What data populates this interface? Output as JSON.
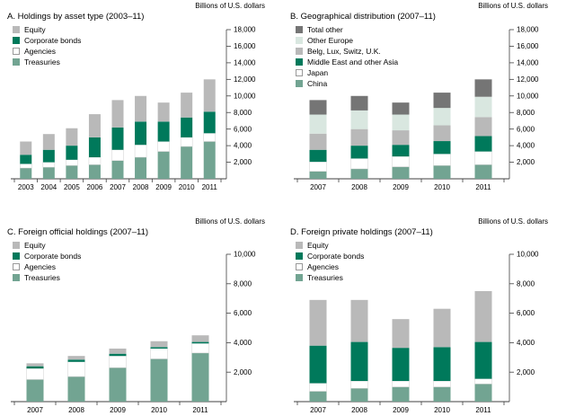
{
  "units_label": "Billions of U.S. dollars",
  "colors": {
    "equity": "#b9b9b9",
    "corporate_bonds": "#00795b",
    "agencies": "#ffffff",
    "treasuries": "#72a492",
    "total_other": "#757575",
    "other_europe": "#d9e7e0",
    "belg_lux_switz_uk": "#b9b9b9",
    "middle_east_other_asia": "#00795b",
    "japan": "#ffffff",
    "china": "#72a492",
    "axis_line": "#404040",
    "text": "#000000"
  },
  "chart_data": [
    {
      "id": "panel-a",
      "type": "bar",
      "stacked": true,
      "title": "A. Holdings by asset type (2003–11)",
      "units": "Billions of U.S. dollars",
      "categories": [
        "2003",
        "2004",
        "2005",
        "2006",
        "2007",
        "2008",
        "2009",
        "2010",
        "2011"
      ],
      "series": [
        {
          "name": "Treasuries",
          "color_key": "treasuries",
          "values": [
            1300,
            1400,
            1600,
            1700,
            2200,
            2600,
            3300,
            3900,
            4500
          ]
        },
        {
          "name": "Agencies",
          "color_key": "agencies",
          "values": [
            500,
            600,
            700,
            900,
            1300,
            1500,
            1200,
            1100,
            1000
          ]
        },
        {
          "name": "Corporate bonds",
          "color_key": "corporate_bonds",
          "values": [
            1100,
            1500,
            1700,
            2400,
            2700,
            2800,
            2400,
            2400,
            2600
          ]
        },
        {
          "name": "Equity",
          "color_key": "equity",
          "values": [
            1600,
            1900,
            2100,
            2800,
            3300,
            3100,
            2300,
            3000,
            3900
          ]
        }
      ],
      "ylim": [
        0,
        18000
      ],
      "ytick_step": 2000,
      "grid": false,
      "legend_position": "top-left",
      "axis_side": "right"
    },
    {
      "id": "panel-b",
      "type": "bar",
      "stacked": true,
      "title": "B. Geographical distribution (2007–11)",
      "units": "Billions of U.S. dollars",
      "categories": [
        "2007",
        "2008",
        "2009",
        "2010",
        "2011"
      ],
      "series": [
        {
          "name": "China",
          "color_key": "china",
          "values": [
            900,
            1200,
            1450,
            1600,
            1700
          ]
        },
        {
          "name": "Japan",
          "color_key": "japan",
          "values": [
            1150,
            1250,
            1250,
            1400,
            1600
          ]
        },
        {
          "name": "Middle East and other Asia",
          "color_key": "middle_east_other_asia",
          "values": [
            1450,
            1550,
            1400,
            1550,
            1850
          ]
        },
        {
          "name": "Belg, Lux, Switz, U.K.",
          "color_key": "belg_lux_switz_uk",
          "values": [
            1950,
            2000,
            1750,
            1900,
            2300
          ]
        },
        {
          "name": "Other Europe",
          "color_key": "other_europe",
          "values": [
            2300,
            2250,
            1900,
            2100,
            2450
          ]
        },
        {
          "name": "Total other",
          "color_key": "total_other",
          "values": [
            1750,
            1750,
            1450,
            1850,
            2100
          ]
        }
      ],
      "ylim": [
        0,
        18000
      ],
      "ytick_step": 2000,
      "grid": false,
      "legend_position": "top-left",
      "axis_side": "right"
    },
    {
      "id": "panel-c",
      "type": "bar",
      "stacked": true,
      "title": "C. Foreign official holdings (2007–11)",
      "units": "Billions of U.S. dollars",
      "categories": [
        "2007",
        "2008",
        "2009",
        "2010",
        "2011"
      ],
      "series": [
        {
          "name": "Treasuries",
          "color_key": "treasuries",
          "values": [
            1500,
            1700,
            2300,
            2900,
            3300
          ]
        },
        {
          "name": "Agencies",
          "color_key": "agencies",
          "values": [
            750,
            1000,
            800,
            700,
            650
          ]
        },
        {
          "name": "Corporate bonds",
          "color_key": "corporate_bonds",
          "values": [
            150,
            150,
            150,
            100,
            100
          ]
        },
        {
          "name": "Equity",
          "color_key": "equity",
          "values": [
            200,
            250,
            350,
            400,
            450
          ]
        }
      ],
      "ylim": [
        0,
        10000
      ],
      "ytick_step": 2000,
      "grid": false,
      "legend_position": "top-left",
      "axis_side": "right"
    },
    {
      "id": "panel-d",
      "type": "bar",
      "stacked": true,
      "title": "D. Foreign private holdings (2007–11)",
      "units": "Billions of U.S. dollars",
      "categories": [
        "2007",
        "2008",
        "2009",
        "2010",
        "2011"
      ],
      "series": [
        {
          "name": "Treasuries",
          "color_key": "treasuries",
          "values": [
            700,
            900,
            1000,
            1000,
            1200
          ]
        },
        {
          "name": "Agencies",
          "color_key": "agencies",
          "values": [
            550,
            500,
            400,
            400,
            350
          ]
        },
        {
          "name": "Corporate bonds",
          "color_key": "corporate_bonds",
          "values": [
            2550,
            2650,
            2250,
            2300,
            2500
          ]
        },
        {
          "name": "Equity",
          "color_key": "equity",
          "values": [
            3100,
            2850,
            1950,
            2600,
            3450
          ]
        }
      ],
      "ylim": [
        0,
        10000
      ],
      "ytick_step": 2000,
      "grid": false,
      "legend_position": "top-left",
      "axis_side": "right"
    }
  ]
}
